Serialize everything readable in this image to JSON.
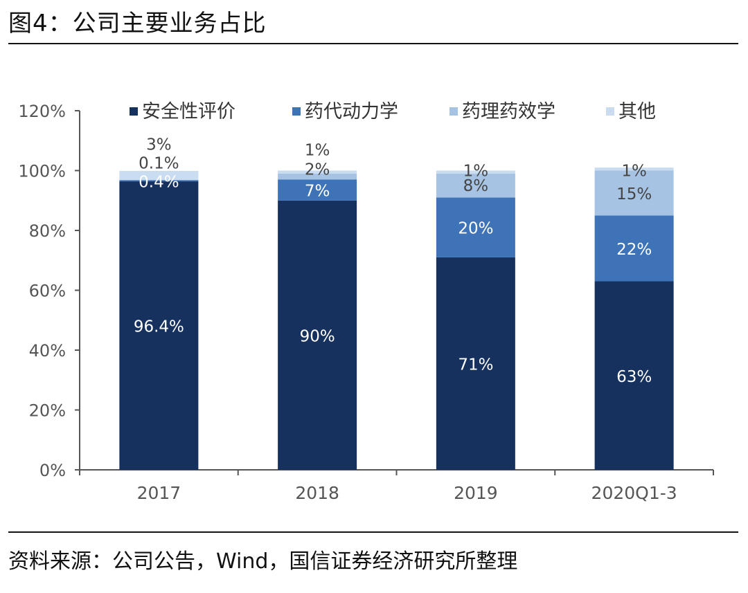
{
  "header": {
    "title": "图4：公司主要业务占比"
  },
  "footer": {
    "source": "资料来源：公司公告，Wind，国信证券经济研究所整理"
  },
  "colors": {
    "safety": "#17315e",
    "pk": "#3e74b7",
    "pd": "#a7c3e3",
    "other": "#c9dcf0",
    "axis": "#555555"
  },
  "chart_data": {
    "type": "bar",
    "stacked": true,
    "categories": [
      "2017",
      "2018",
      "2019",
      "2020Q1-3"
    ],
    "ylim": [
      0,
      120
    ],
    "yticks": [
      "0%",
      "20%",
      "40%",
      "60%",
      "80%",
      "100%",
      "120%"
    ],
    "legend_position": "top",
    "series": [
      {
        "name": "安全性评价",
        "color": "#17315e",
        "values": [
          96.4,
          90,
          71,
          63
        ],
        "labels": [
          "96.4%",
          "90%",
          "71%",
          "63%"
        ]
      },
      {
        "name": "药代动力学",
        "color": "#3e74b7",
        "values": [
          0.4,
          7,
          20,
          22
        ],
        "labels": [
          "0.4%",
          "7%",
          "20%",
          "22%"
        ]
      },
      {
        "name": "药理药效学",
        "color": "#a7c3e3",
        "values": [
          0.1,
          2,
          8,
          15
        ],
        "labels": [
          "0.1%",
          "2%",
          "8%",
          "15%"
        ]
      },
      {
        "name": "其他",
        "color": "#c9dcf0",
        "values": [
          3,
          1,
          1,
          1
        ],
        "labels": [
          "3%",
          "1%",
          "1%",
          "1%"
        ]
      }
    ]
  }
}
